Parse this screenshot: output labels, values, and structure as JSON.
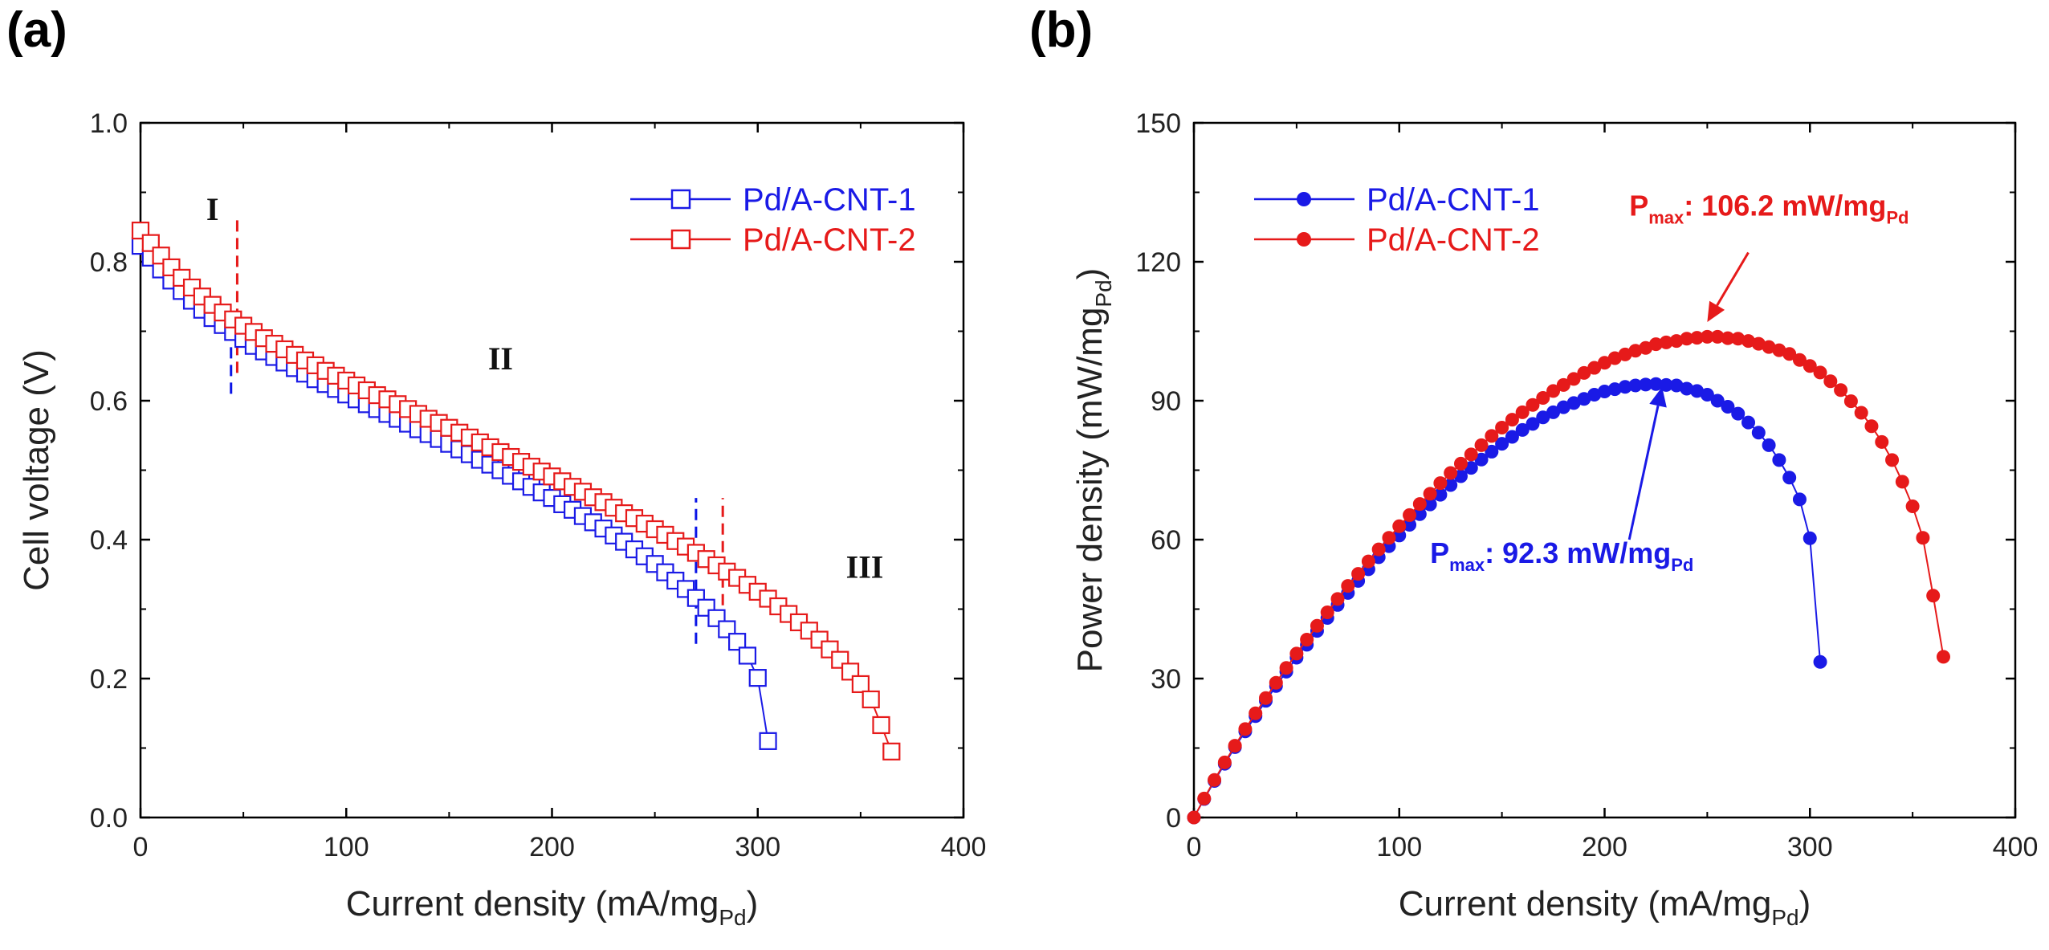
{
  "chart_data": [
    {
      "panel": "(a)",
      "type": "line",
      "marker": "open-square",
      "xlabel": "Current density (mA/mg",
      "xlabel_sub": "Pd",
      "xlabel_suffix": ")",
      "ylabel": "Cell voltage (V)",
      "xlim": [
        0,
        400
      ],
      "ylim": [
        0.0,
        1.0
      ],
      "xticks": [
        0,
        100,
        200,
        300,
        400
      ],
      "yticks": [
        0.0,
        0.2,
        0.4,
        0.6,
        0.8,
        1.0
      ],
      "xtick_labels": [
        "0",
        "100",
        "200",
        "300",
        "400"
      ],
      "ytick_labels": [
        "0.0",
        "0.2",
        "0.4",
        "0.6",
        "0.8",
        "1.0"
      ],
      "legend_position": "top-right",
      "regions": [
        {
          "label": "I",
          "x": 35,
          "y": 0.86
        },
        {
          "label": "II",
          "x": 175,
          "y": 0.645
        },
        {
          "label": "III",
          "x": 352,
          "y": 0.345
        }
      ],
      "dividers": [
        {
          "x": 44,
          "y_range": [
            0.61,
            0.73
          ],
          "color": "#0a14e6"
        },
        {
          "x": 47,
          "y_range": [
            0.64,
            0.86
          ],
          "color": "#e61a1a"
        },
        {
          "x": 270,
          "y_range": [
            0.25,
            0.46
          ],
          "color": "#0a14e6"
        },
        {
          "x": 283,
          "y_range": [
            0.28,
            0.46
          ],
          "color": "#e61a1a"
        }
      ],
      "series": [
        {
          "name": "Pd/A-CNT-1",
          "color": "#1a1ae6",
          "x": [
            0,
            5,
            10,
            15,
            20,
            25,
            30,
            35,
            40,
            45,
            50,
            55,
            60,
            65,
            70,
            75,
            80,
            85,
            90,
            95,
            100,
            105,
            110,
            115,
            120,
            125,
            130,
            135,
            140,
            145,
            150,
            155,
            160,
            165,
            170,
            175,
            180,
            185,
            190,
            195,
            200,
            205,
            210,
            215,
            220,
            225,
            230,
            235,
            240,
            245,
            250,
            255,
            260,
            265,
            270,
            275,
            280,
            285,
            290,
            295,
            300,
            305
          ],
          "y": [
            0.823,
            0.806,
            0.789,
            0.773,
            0.758,
            0.744,
            0.731,
            0.719,
            0.709,
            0.699,
            0.689,
            0.679,
            0.671,
            0.663,
            0.655,
            0.647,
            0.639,
            0.631,
            0.624,
            0.617,
            0.609,
            0.602,
            0.595,
            0.588,
            0.581,
            0.574,
            0.567,
            0.559,
            0.552,
            0.545,
            0.538,
            0.53,
            0.523,
            0.515,
            0.508,
            0.5,
            0.492,
            0.484,
            0.476,
            0.468,
            0.46,
            0.451,
            0.443,
            0.434,
            0.425,
            0.416,
            0.406,
            0.397,
            0.386,
            0.376,
            0.365,
            0.353,
            0.341,
            0.329,
            0.316,
            0.302,
            0.287,
            0.271,
            0.253,
            0.233,
            0.201,
            0.11
          ]
        },
        {
          "name": "Pd/A-CNT-2",
          "color": "#e61a1a",
          "x": [
            0,
            5,
            10,
            15,
            20,
            25,
            30,
            35,
            40,
            45,
            50,
            55,
            60,
            65,
            70,
            75,
            80,
            85,
            90,
            95,
            100,
            105,
            110,
            115,
            120,
            125,
            130,
            135,
            140,
            145,
            150,
            155,
            160,
            165,
            170,
            175,
            180,
            185,
            190,
            195,
            200,
            205,
            210,
            215,
            220,
            225,
            230,
            235,
            240,
            245,
            250,
            255,
            260,
            265,
            270,
            275,
            280,
            285,
            290,
            295,
            300,
            305,
            310,
            315,
            320,
            325,
            330,
            335,
            340,
            345,
            350,
            355,
            360,
            365
          ],
          "y": [
            0.845,
            0.827,
            0.809,
            0.792,
            0.777,
            0.763,
            0.75,
            0.738,
            0.727,
            0.717,
            0.708,
            0.699,
            0.69,
            0.682,
            0.674,
            0.666,
            0.658,
            0.651,
            0.643,
            0.636,
            0.629,
            0.622,
            0.615,
            0.608,
            0.602,
            0.595,
            0.588,
            0.581,
            0.574,
            0.568,
            0.561,
            0.554,
            0.547,
            0.54,
            0.533,
            0.526,
            0.519,
            0.512,
            0.505,
            0.498,
            0.491,
            0.484,
            0.476,
            0.469,
            0.461,
            0.454,
            0.446,
            0.438,
            0.431,
            0.423,
            0.415,
            0.407,
            0.398,
            0.39,
            0.381,
            0.372,
            0.363,
            0.354,
            0.345,
            0.335,
            0.325,
            0.315,
            0.304,
            0.293,
            0.281,
            0.269,
            0.256,
            0.242,
            0.227,
            0.21,
            0.192,
            0.17,
            0.133,
            0.095
          ]
        }
      ]
    },
    {
      "panel": "(b)",
      "type": "line",
      "marker": "filled-circle",
      "xlabel": "Current density (mA/mg",
      "xlabel_sub": "Pd",
      "xlabel_suffix": ")",
      "ylabel": "Power density (mW/mg",
      "ylabel_sub": "Pd",
      "ylabel_suffix": ")",
      "xlim": [
        0,
        400
      ],
      "ylim": [
        0,
        150
      ],
      "xticks": [
        0,
        100,
        200,
        300,
        400
      ],
      "yticks": [
        0,
        30,
        60,
        90,
        120,
        150
      ],
      "xtick_labels": [
        "0",
        "100",
        "200",
        "300",
        "400"
      ],
      "ytick_labels": [
        "0",
        "30",
        "60",
        "90",
        "120",
        "150"
      ],
      "legend_position": "top-left",
      "annotations": [
        {
          "prefix": "P",
          "prefix_sub": "max",
          "text": ": 106.2 mW/mg",
          "sub": "Pd",
          "color": "#e61a1a",
          "label_at": [
            212,
            130
          ],
          "arrow_from": [
            270,
            122
          ],
          "arrow_to": [
            250,
            107
          ]
        },
        {
          "prefix": "P",
          "prefix_sub": "max",
          "text": ": 92.3 mW/mg",
          "sub": "Pd",
          "color": "#1a1ae6",
          "label_at": [
            115,
            55
          ],
          "arrow_from": [
            212,
            60
          ],
          "arrow_to": [
            228,
            93
          ]
        }
      ],
      "series": [
        {
          "name": "Pd/A-CNT-1",
          "color": "#1a1ae6",
          "x": [
            0,
            5,
            10,
            15,
            20,
            25,
            30,
            35,
            40,
            45,
            50,
            55,
            60,
            65,
            70,
            75,
            80,
            85,
            90,
            95,
            100,
            105,
            110,
            115,
            120,
            125,
            130,
            135,
            140,
            145,
            150,
            155,
            160,
            165,
            170,
            175,
            180,
            185,
            190,
            195,
            200,
            205,
            210,
            215,
            220,
            225,
            230,
            235,
            240,
            245,
            250,
            255,
            260,
            265,
            270,
            275,
            280,
            285,
            290,
            295,
            300,
            305
          ],
          "y": [
            0,
            4.0,
            7.9,
            11.6,
            15.2,
            18.6,
            21.9,
            25.2,
            28.4,
            31.5,
            34.5,
            37.3,
            40.3,
            43.1,
            45.9,
            48.5,
            51.1,
            53.6,
            56.2,
            58.6,
            60.9,
            63.2,
            65.5,
            67.6,
            69.7,
            71.8,
            73.7,
            75.5,
            77.3,
            79.0,
            80.7,
            82.2,
            83.7,
            85.0,
            86.4,
            87.5,
            88.6,
            89.5,
            90.4,
            91.3,
            92.0,
            92.5,
            93.0,
            93.3,
            93.5,
            93.6,
            93.4,
            93.3,
            92.6,
            92.1,
            91.3,
            90.0,
            88.7,
            87.2,
            85.3,
            83.1,
            80.4,
            77.2,
            73.4,
            68.7,
            60.3,
            33.6
          ]
        },
        {
          "name": "Pd/A-CNT-2",
          "color": "#e61a1a",
          "x": [
            0,
            5,
            10,
            15,
            20,
            25,
            30,
            35,
            40,
            45,
            50,
            55,
            60,
            65,
            70,
            75,
            80,
            85,
            90,
            95,
            100,
            105,
            110,
            115,
            120,
            125,
            130,
            135,
            140,
            145,
            150,
            155,
            160,
            165,
            170,
            175,
            180,
            185,
            190,
            195,
            200,
            205,
            210,
            215,
            220,
            225,
            230,
            235,
            240,
            245,
            250,
            255,
            260,
            265,
            270,
            275,
            280,
            285,
            290,
            295,
            300,
            305,
            310,
            315,
            320,
            325,
            330,
            335,
            340,
            345,
            350,
            355,
            360,
            365
          ],
          "y": [
            0,
            4.1,
            8.1,
            11.9,
            15.5,
            19.1,
            22.5,
            25.8,
            29.1,
            32.3,
            35.4,
            38.4,
            41.4,
            44.3,
            47.2,
            50.0,
            52.6,
            55.3,
            57.9,
            60.4,
            62.9,
            65.3,
            67.7,
            69.9,
            72.2,
            74.4,
            76.4,
            78.4,
            80.4,
            82.4,
            84.2,
            85.9,
            87.5,
            89.1,
            90.6,
            92.1,
            93.4,
            94.7,
            96.0,
            97.1,
            98.2,
            99.2,
            100.0,
            100.8,
            101.4,
            102.2,
            102.6,
            102.9,
            103.4,
            103.6,
            103.8,
            103.8,
            103.5,
            103.4,
            102.9,
            102.3,
            101.6,
            100.9,
            100.1,
            98.8,
            97.5,
            96.1,
            94.2,
            92.3,
            89.9,
            87.4,
            84.5,
            81.1,
            77.2,
            72.5,
            67.2,
            60.4,
            47.9,
            34.7
          ]
        }
      ]
    }
  ]
}
